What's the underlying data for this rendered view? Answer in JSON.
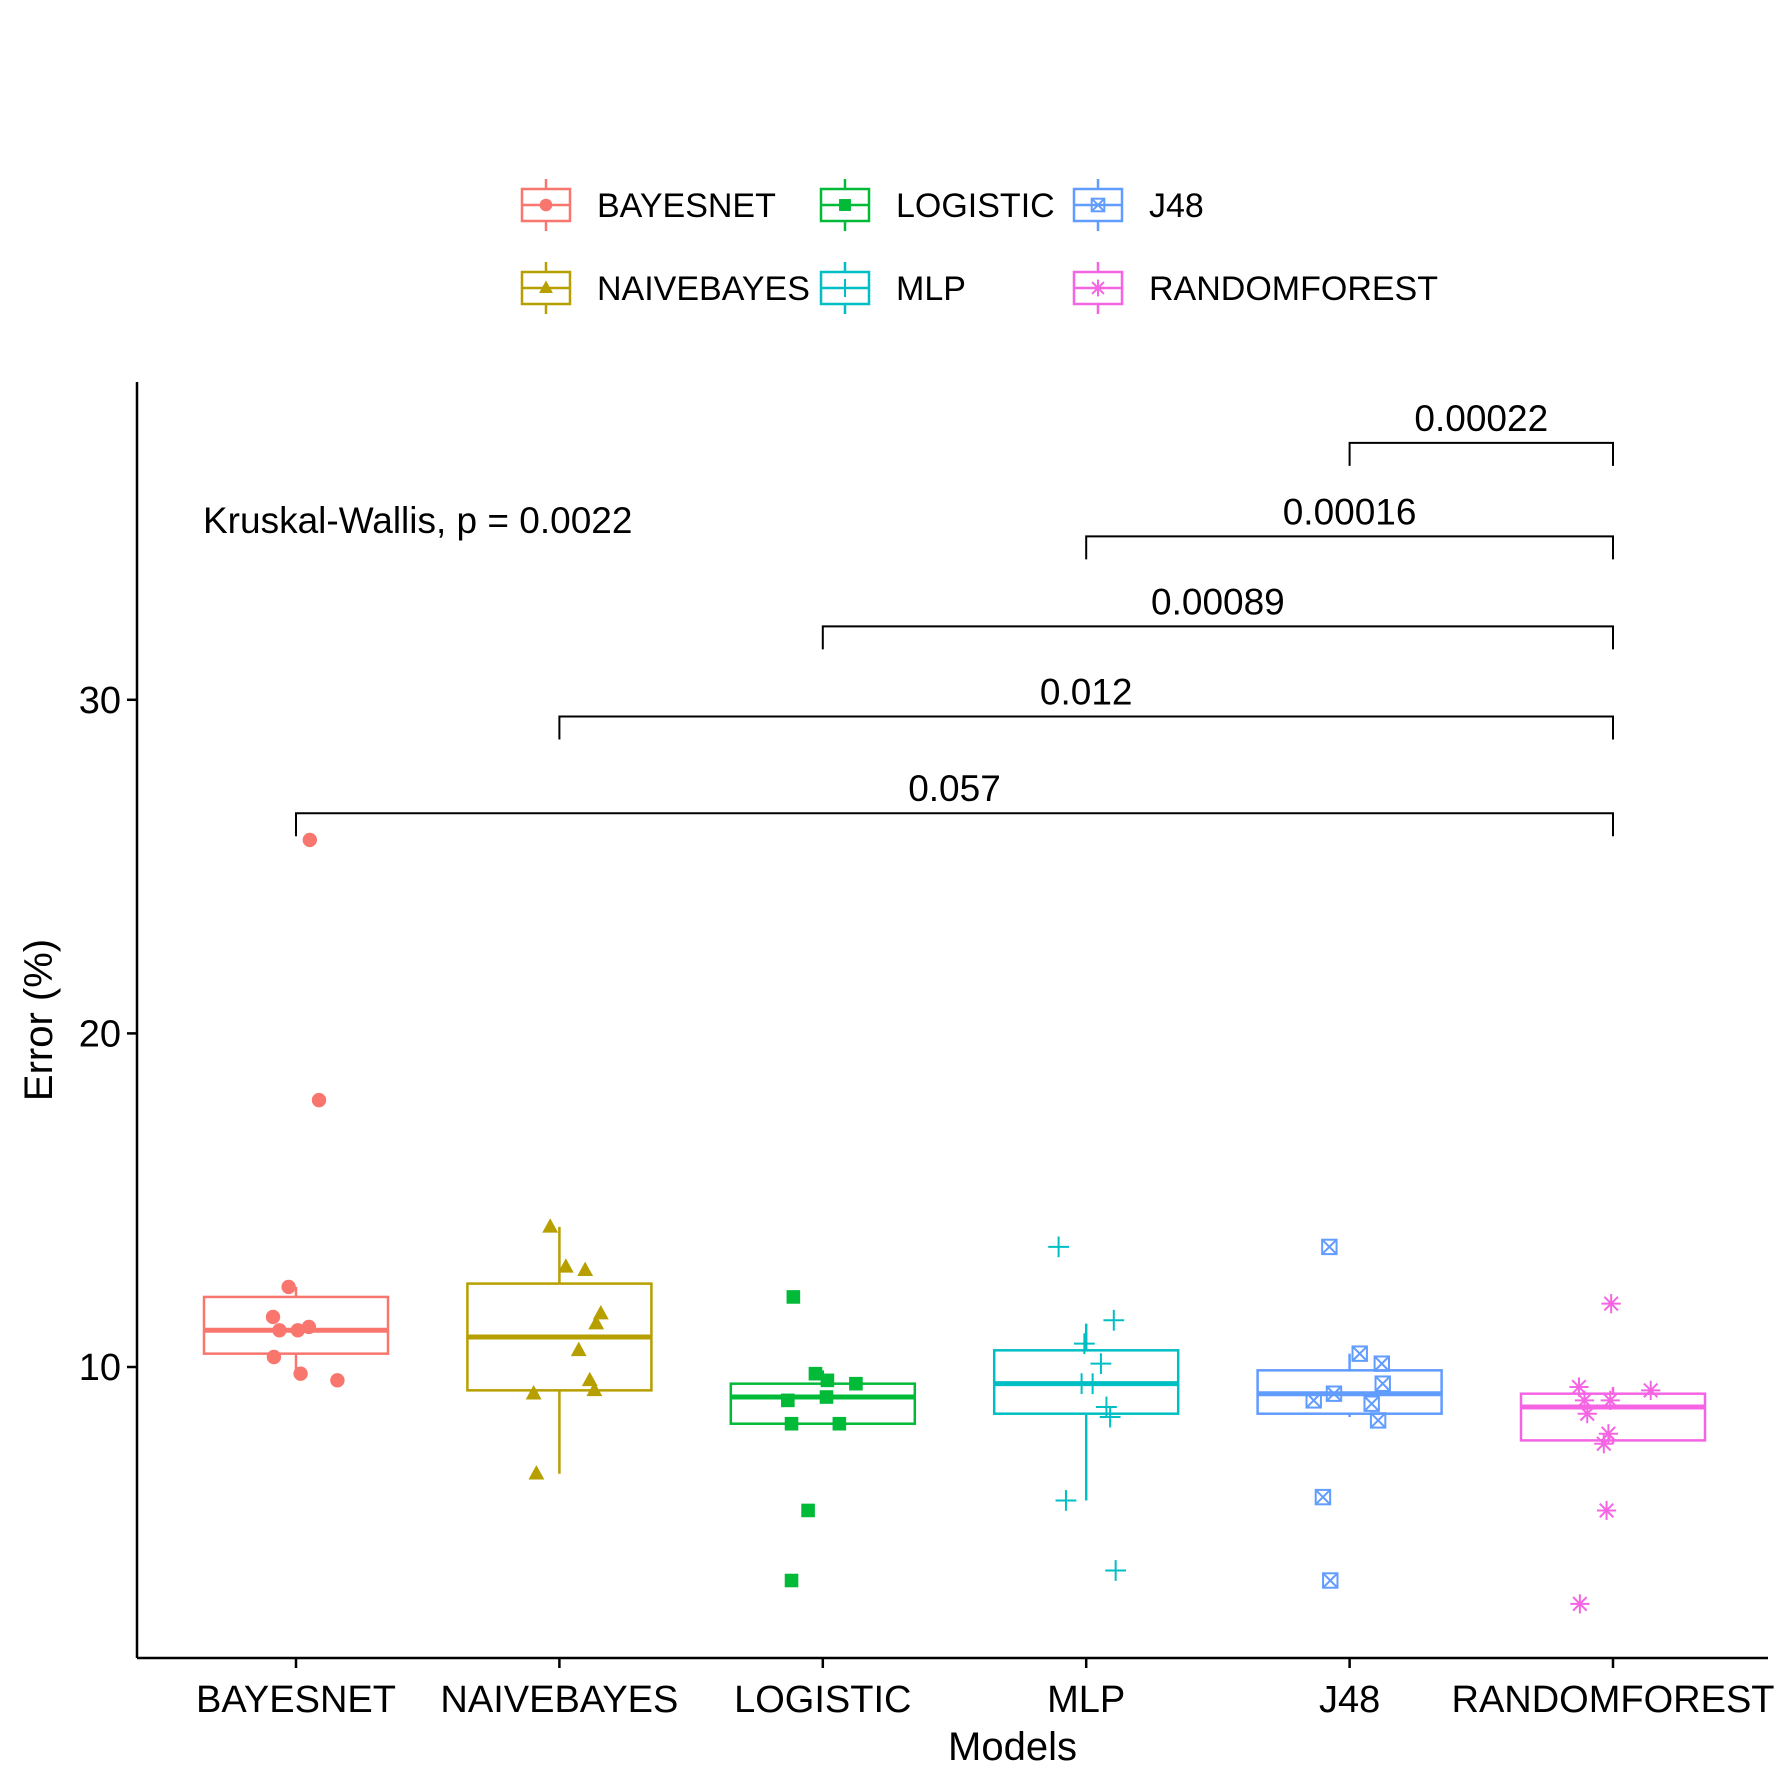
{
  "chart_data": {
    "type": "boxplot",
    "xlabel": "Models",
    "ylabel": "Error (%)",
    "ylim": [
      1.5,
      39
    ],
    "yticks": [
      10,
      20,
      30
    ],
    "grid": false,
    "legend_position": "top",
    "annotation": "Kruskal-Wallis, p = 0.0022",
    "categories": [
      "BAYESNET",
      "NAIVEBAYES",
      "LOGISTIC",
      "MLP",
      "J48",
      "RANDOMFOREST"
    ],
    "series": [
      {
        "name": "BAYESNET",
        "color": "#F8766D",
        "shape": "circle",
        "box": {
          "q1": 10.4,
          "median": 11.1,
          "q3": 12.1,
          "whisker_low": 9.8,
          "whisker_high": 12.4
        },
        "points": [
          {
            "jitter": 0.15,
            "y": 25.8
          },
          {
            "jitter": 0.25,
            "y": 18.0
          },
          {
            "jitter": -0.08,
            "y": 12.4
          },
          {
            "jitter": -0.25,
            "y": 11.5
          },
          {
            "jitter": -0.18,
            "y": 11.1
          },
          {
            "jitter": 0.02,
            "y": 11.1
          },
          {
            "jitter": 0.14,
            "y": 11.2
          },
          {
            "jitter": -0.24,
            "y": 10.3
          },
          {
            "jitter": 0.05,
            "y": 9.8
          },
          {
            "jitter": 0.45,
            "y": 9.6
          }
        ]
      },
      {
        "name": "NAIVEBAYES",
        "color": "#B79F00",
        "shape": "triangle",
        "box": {
          "q1": 9.3,
          "median": 10.9,
          "q3": 12.5,
          "whisker_low": 6.8,
          "whisker_high": 14.2
        },
        "points": [
          {
            "jitter": -0.1,
            "y": 14.2
          },
          {
            "jitter": 0.07,
            "y": 13.0
          },
          {
            "jitter": 0.28,
            "y": 12.9
          },
          {
            "jitter": 0.45,
            "y": 11.6
          },
          {
            "jitter": 0.4,
            "y": 11.3
          },
          {
            "jitter": 0.21,
            "y": 10.5
          },
          {
            "jitter": 0.33,
            "y": 9.6
          },
          {
            "jitter": -0.28,
            "y": 9.2
          },
          {
            "jitter": 0.38,
            "y": 9.3
          },
          {
            "jitter": -0.25,
            "y": 6.8
          }
        ]
      },
      {
        "name": "LOGISTIC",
        "color": "#00BA38",
        "shape": "square",
        "box": {
          "q1": 8.3,
          "median": 9.1,
          "q3": 9.5,
          "whisker_low": 8.3,
          "whisker_high": 9.9
        },
        "points": [
          {
            "jitter": -0.32,
            "y": 12.1
          },
          {
            "jitter": -0.08,
            "y": 9.8
          },
          {
            "jitter": 0.05,
            "y": 9.6
          },
          {
            "jitter": 0.36,
            "y": 9.5
          },
          {
            "jitter": -0.38,
            "y": 9.0
          },
          {
            "jitter": 0.04,
            "y": 9.1
          },
          {
            "jitter": -0.34,
            "y": 8.3
          },
          {
            "jitter": 0.18,
            "y": 8.3
          },
          {
            "jitter": -0.16,
            "y": 5.7
          },
          {
            "jitter": -0.34,
            "y": 3.6
          }
        ]
      },
      {
        "name": "MLP",
        "color": "#00BFC4",
        "shape": "plus",
        "box": {
          "q1": 8.6,
          "median": 9.5,
          "q3": 10.5,
          "whisker_low": 6.0,
          "whisker_high": 11.3
        },
        "points": [
          {
            "jitter": -0.3,
            "y": 13.6
          },
          {
            "jitter": 0.3,
            "y": 11.4
          },
          {
            "jitter": -0.02,
            "y": 10.7
          },
          {
            "jitter": 0.16,
            "y": 10.1
          },
          {
            "jitter": -0.05,
            "y": 9.5
          },
          {
            "jitter": 0.07,
            "y": 9.5
          },
          {
            "jitter": 0.22,
            "y": 8.8
          },
          {
            "jitter": 0.26,
            "y": 8.5
          },
          {
            "jitter": -0.22,
            "y": 6.0
          },
          {
            "jitter": 0.32,
            "y": 3.9
          }
        ]
      },
      {
        "name": "J48",
        "color": "#619CFF",
        "shape": "square-cross",
        "box": {
          "q1": 8.6,
          "median": 9.2,
          "q3": 9.9,
          "whisker_low": 8.5,
          "whisker_high": 10.4
        },
        "points": [
          {
            "jitter": -0.22,
            "y": 13.6
          },
          {
            "jitter": 0.11,
            "y": 10.4
          },
          {
            "jitter": 0.35,
            "y": 10.1
          },
          {
            "jitter": 0.36,
            "y": 9.5
          },
          {
            "jitter": -0.17,
            "y": 9.2
          },
          {
            "jitter": -0.39,
            "y": 9.0
          },
          {
            "jitter": 0.24,
            "y": 8.9
          },
          {
            "jitter": 0.31,
            "y": 8.4
          },
          {
            "jitter": -0.29,
            "y": 6.1
          },
          {
            "jitter": -0.21,
            "y": 3.6
          }
        ]
      },
      {
        "name": "RANDOMFOREST",
        "color": "#F564E3",
        "shape": "asterisk",
        "box": {
          "q1": 7.8,
          "median": 8.8,
          "q3": 9.2,
          "whisker_low": 7.7,
          "whisker_high": 9.4
        },
        "points": [
          {
            "jitter": -0.02,
            "y": 11.9
          },
          {
            "jitter": 0.41,
            "y": 9.3
          },
          {
            "jitter": -0.37,
            "y": 9.4
          },
          {
            "jitter": -0.31,
            "y": 9.0
          },
          {
            "jitter": -0.03,
            "y": 9.0
          },
          {
            "jitter": -0.28,
            "y": 8.6
          },
          {
            "jitter": -0.05,
            "y": 8.0
          },
          {
            "jitter": -0.1,
            "y": 7.7
          },
          {
            "jitter": -0.07,
            "y": 5.7
          },
          {
            "jitter": -0.36,
            "y": 2.9
          }
        ]
      }
    ],
    "comparisons": [
      {
        "from": "BAYESNET",
        "to": "RANDOMFOREST",
        "y": 26.6,
        "label": "0.057"
      },
      {
        "from": "NAIVEBAYES",
        "to": "RANDOMFOREST",
        "y": 29.5,
        "label": "0.012"
      },
      {
        "from": "LOGISTIC",
        "to": "RANDOMFOREST",
        "y": 32.2,
        "label": "0.00089"
      },
      {
        "from": "MLP",
        "to": "RANDOMFOREST",
        "y": 34.9,
        "label": "0.00016"
      },
      {
        "from": "J48",
        "to": "RANDOMFOREST",
        "y": 37.7,
        "label": "0.00022"
      }
    ]
  }
}
